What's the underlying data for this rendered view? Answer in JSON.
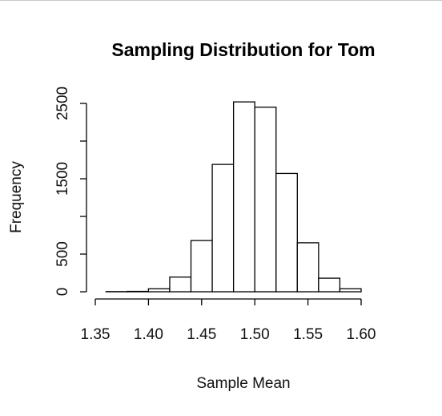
{
  "chart_data": {
    "type": "bar",
    "title": "Sampling Distribution for Tom",
    "xlabel": "Sample Mean",
    "ylabel": "Frequency",
    "xlim": [
      1.35,
      1.6
    ],
    "ylim": [
      0,
      2500
    ],
    "x_ticks": [
      "1.35",
      "1.40",
      "1.45",
      "1.50",
      "1.55",
      "1.60"
    ],
    "y_ticks": [
      "0",
      "500",
      "1500",
      "2500"
    ],
    "bin_width": 0.02,
    "bins": [
      {
        "start": 1.36,
        "end": 1.38,
        "count": 2
      },
      {
        "start": 1.38,
        "end": 1.4,
        "count": 5
      },
      {
        "start": 1.4,
        "end": 1.42,
        "count": 40
      },
      {
        "start": 1.42,
        "end": 1.44,
        "count": 195
      },
      {
        "start": 1.44,
        "end": 1.46,
        "count": 680
      },
      {
        "start": 1.46,
        "end": 1.48,
        "count": 1690
      },
      {
        "start": 1.48,
        "end": 1.5,
        "count": 2520
      },
      {
        "start": 1.5,
        "end": 1.52,
        "count": 2450
      },
      {
        "start": 1.52,
        "end": 1.54,
        "count": 1570
      },
      {
        "start": 1.54,
        "end": 1.56,
        "count": 650
      },
      {
        "start": 1.56,
        "end": 1.58,
        "count": 180
      },
      {
        "start": 1.58,
        "end": 1.6,
        "count": 40
      }
    ],
    "grid": false,
    "fill_color": "#ffffff",
    "stroke_color": "#000000"
  }
}
